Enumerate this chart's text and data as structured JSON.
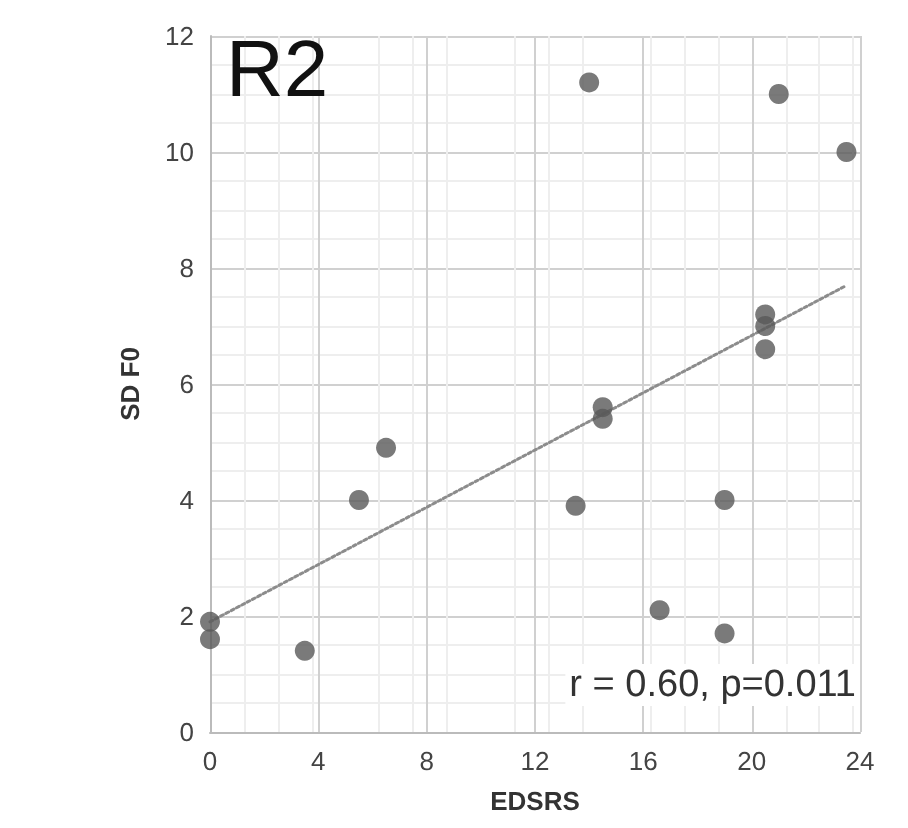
{
  "chart_data": {
    "type": "scatter",
    "title": "R2",
    "xlabel": "EDSRS",
    "ylabel": "SD F0",
    "series": [
      {
        "type": "scatter",
        "color": "#595959",
        "x": [
          0,
          0,
          3.5,
          5.5,
          6.5,
          13.5,
          14,
          14.5,
          14.5,
          16.6,
          19,
          19,
          20.5,
          20.5,
          20.5,
          21,
          23.5
        ],
        "values": [
          1.9,
          1.6,
          1.4,
          4.0,
          4.9,
          3.9,
          11.2,
          5.6,
          5.4,
          2.1,
          4.0,
          1.7,
          7.2,
          7.0,
          6.6,
          11.0,
          10.0
        ]
      },
      {
        "type": "line",
        "color": "#8c8c8c",
        "line_style": "dotted",
        "marker": "none",
        "x": [
          0,
          23.5
        ],
        "values": [
          1.9,
          7.7
        ]
      }
    ],
    "xlim": [
      0,
      24
    ],
    "xticks": [
      0,
      4,
      8,
      12,
      16,
      20,
      24
    ],
    "ylim": [
      0,
      12
    ],
    "yticks": [
      0,
      2,
      4,
      6,
      8,
      10,
      12
    ],
    "grid": true,
    "marker": "circle",
    "annotations": [
      "r = 0.60, p=0.011"
    ]
  }
}
